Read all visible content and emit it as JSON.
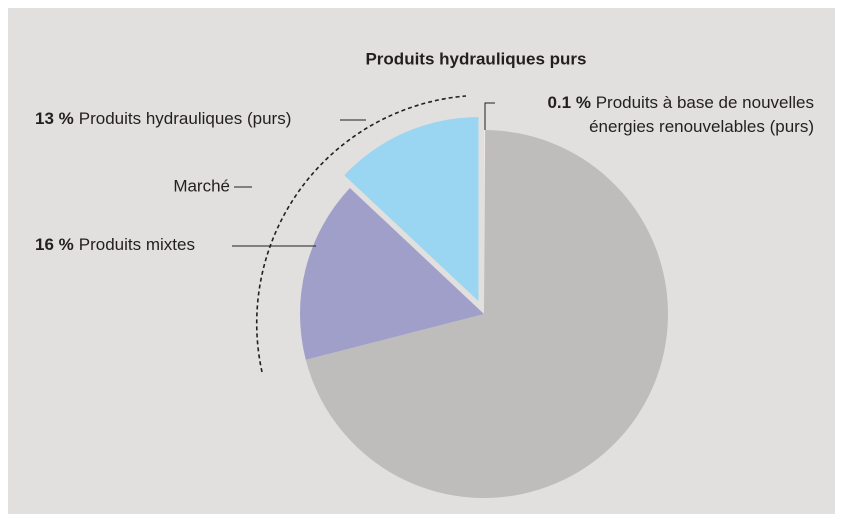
{
  "chart_data": {
    "type": "pie",
    "title": "Produits hydrauliques purs",
    "annotations": [
      "Marché"
    ],
    "categories": [
      "Produits à base de nouvelles énergies renouvelables (purs)",
      null,
      "Produits mixtes",
      "Produits hydrauliques (purs)"
    ],
    "values": [
      0.1,
      70.9,
      16,
      13
    ],
    "value_labels": [
      "0.1 %",
      null,
      "16 %",
      "13 %"
    ],
    "colors": [
      "#ebe9e2",
      "#bebdbb",
      "#a09fc9",
      "#9ad5f2"
    ],
    "explode": [
      false,
      false,
      false,
      true
    ]
  }
}
